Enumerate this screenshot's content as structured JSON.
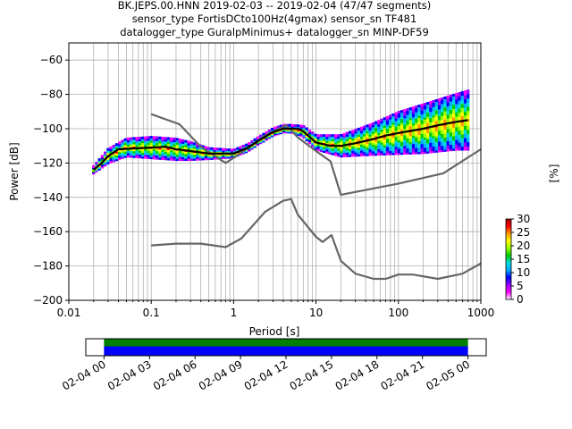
{
  "chart_data": [
    {
      "type": "heatmap",
      "title_lines": [
        "BK.JEPS.00.HNN   2019-02-03 -- 2019-02-04  (47/47 segments)",
        "sensor_type FortisDCto100Hz(4gmax) sensor_sn TF481",
        "datalogger_type GuralpMinimus+ datalogger_sn MINP-DF59"
      ],
      "xlabel": "Period [s]",
      "ylabel": "Power [dB]",
      "xscale": "log",
      "xlim": [
        0.01,
        1000
      ],
      "ylim": [
        -200,
        -50
      ],
      "x_ticks": [
        0.01,
        0.1,
        1,
        10,
        100,
        1000
      ],
      "x_tick_labels": [
        "0.01",
        "0.1",
        "1",
        "10",
        "100",
        "1000"
      ],
      "y_ticks": [
        -200,
        -180,
        -160,
        -140,
        -120,
        -100,
        -80,
        -60
      ],
      "y_tick_labels": [
        "−200",
        "−180",
        "−160",
        "−140",
        "−120",
        "−100",
        "−80",
        "−60"
      ],
      "grid": true,
      "series": [
        {
          "color": "#666666",
          "x": [
            0.1,
            0.22,
            0.4,
            0.8,
            1.24,
            2.4,
            4.3,
            5.0,
            6.0,
            10,
            15,
            20,
            100,
            350,
            1000
          ],
          "y": [
            -91.5,
            -97.4,
            -110.5,
            -120.0,
            -114.0,
            -104.0,
            -98.0,
            -101.0,
            -105.0,
            -113.0,
            -119.0,
            -138.5,
            -132.0,
            -126.0,
            -112.0
          ]
        },
        {
          "color": "#666666",
          "x": [
            0.1,
            0.2,
            0.4,
            0.8,
            1.24,
            2.4,
            4.0,
            5.0,
            6.0,
            10,
            12,
            15.4,
            20,
            30,
            50,
            70,
            100,
            150,
            300,
            600,
            1000
          ],
          "y": [
            -168.0,
            -167.0,
            -167.0,
            -169.0,
            -164.0,
            -148.5,
            -142.0,
            -141.0,
            -150.0,
            -163.0,
            -166.0,
            -162.0,
            -177.0,
            -184.5,
            -187.5,
            -187.5,
            -185.0,
            -185.0,
            -187.5,
            -184.5,
            -178.5
          ]
        },
        {
          "color": "#000000",
          "x": [
            0.02,
            0.025,
            0.03,
            0.04,
            0.06,
            0.1,
            0.15,
            0.2,
            0.3,
            0.5,
            0.7,
            1.0,
            1.5,
            2.0,
            3.0,
            4.0,
            5.0,
            6.0,
            7.0,
            8.0,
            10,
            15,
            20,
            30,
            50,
            70,
            100,
            200,
            300,
            500,
            700
          ],
          "y": [
            -124.0,
            -120.0,
            -116.0,
            -112.0,
            -111.5,
            -111.0,
            -110.5,
            -112.0,
            -113.0,
            -114.5,
            -114.5,
            -114.5,
            -111.0,
            -107.0,
            -102.0,
            -100.0,
            -100.0,
            -100.0,
            -101.5,
            -104.0,
            -108.0,
            -110.0,
            -110.0,
            -108.5,
            -106.0,
            -104.0,
            -102.5,
            -100.0,
            -98.0,
            -96.0,
            -95.0
          ]
        }
      ],
      "density_bands": [
        {
          "x": [
            0.02,
            0.03,
            0.05,
            0.1,
            0.2,
            0.3,
            0.5,
            1.0,
            1.5,
            2.0,
            3.0,
            4.0,
            5.0,
            7.0,
            10,
            20,
            50,
            100,
            200,
            500,
            700
          ],
          "y": [
            -124.0,
            -116.0,
            -111.0,
            -111.0,
            -112.0,
            -113.0,
            -114.5,
            -114.5,
            -111.0,
            -107.0,
            -102.0,
            -100.0,
            -100.0,
            -101.5,
            -108.0,
            -110.0,
            -106.0,
            -102.5,
            -100.0,
            -96.0,
            -95.0
          ],
          "spread": [
            2,
            4,
            5,
            6,
            6,
            5,
            3,
            2,
            2,
            2,
            2,
            2,
            2,
            3,
            4,
            6,
            9,
            12,
            14,
            16,
            17
          ]
        }
      ]
    },
    {
      "type": "bar",
      "categories": [
        "02-04 00",
        "02-04 03",
        "02-04 06",
        "02-04 09",
        "02-04 12",
        "02-04 15",
        "02-04 18",
        "02-04 21",
        "02-05 00"
      ],
      "x_ticks_hours": [
        0,
        3,
        6,
        9,
        12,
        15,
        18,
        21,
        24
      ],
      "xlim_hours": [
        -1.2,
        25.2
      ],
      "coverage_hours": [
        0,
        24
      ],
      "coverage_colors": [
        "#008000",
        "#0000ff"
      ]
    },
    {
      "type": "colorbar",
      "label": "[%]",
      "range": [
        0,
        30
      ],
      "ticks": [
        0,
        5,
        10,
        15,
        20,
        25,
        30
      ],
      "tick_labels": [
        "0",
        "5",
        "10",
        "15",
        "20",
        "25",
        "30"
      ],
      "colors": [
        "#ffffff",
        "#ff00ff",
        "#9900ff",
        "#0000ff",
        "#00aaff",
        "#00dddd",
        "#00cc00",
        "#99ff00",
        "#ffff00",
        "#ff9900",
        "#ff0000",
        "#990000"
      ]
    }
  ]
}
